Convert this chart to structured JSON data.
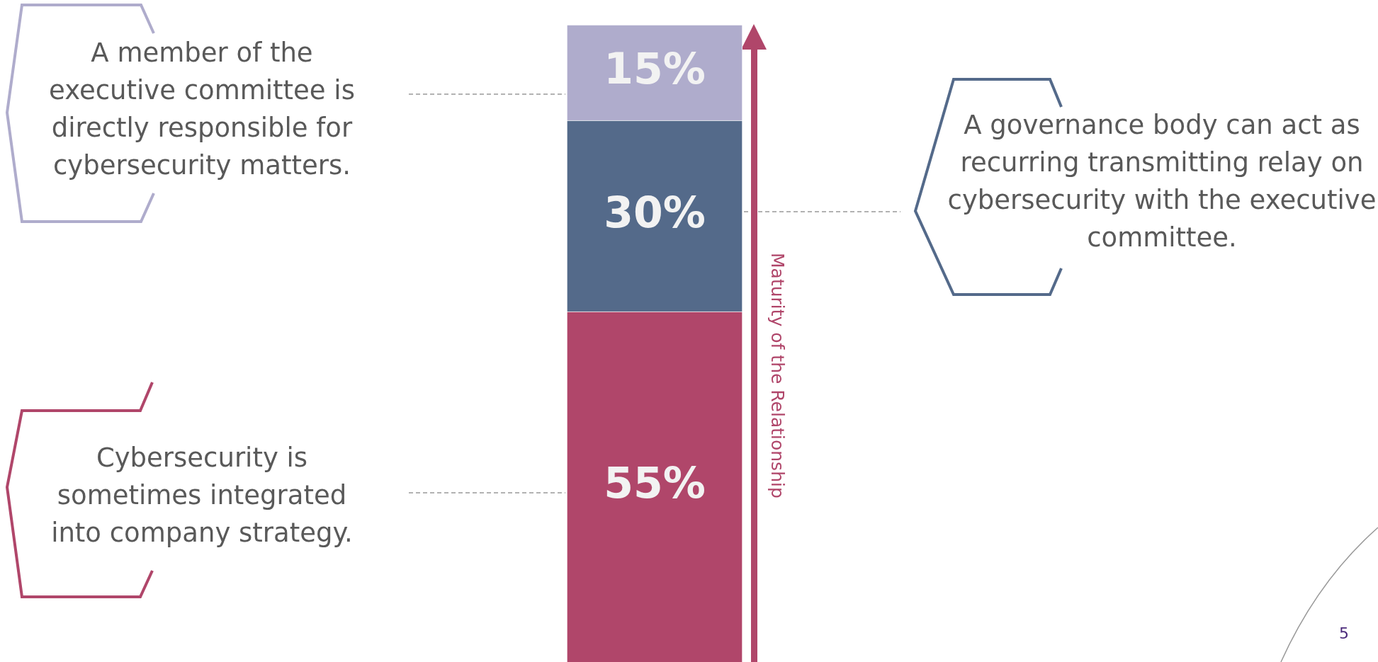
{
  "chart_data": {
    "type": "bar",
    "stacked": true,
    "categories": [
      null
    ],
    "legend": false,
    "series": [
      {
        "color": "#b0466a",
        "values": [
          55
        ],
        "value_labels": [
          "55%"
        ]
      },
      {
        "color": "#546a8a",
        "values": [
          30
        ],
        "value_labels": [
          "30%"
        ]
      },
      {
        "color": "#afaccc",
        "values": [
          15
        ],
        "value_labels": [
          "15%"
        ]
      }
    ],
    "annotations": [
      "Cybersecurity is sometimes integrated into company strategy.",
      "A governance body can act as recurring transmitting relay on cybersecurity with the executive committee.",
      "A member of the executive committee is directly responsible for cybersecurity matters.",
      "Maturity of the Relationship",
      "5"
    ]
  }
}
